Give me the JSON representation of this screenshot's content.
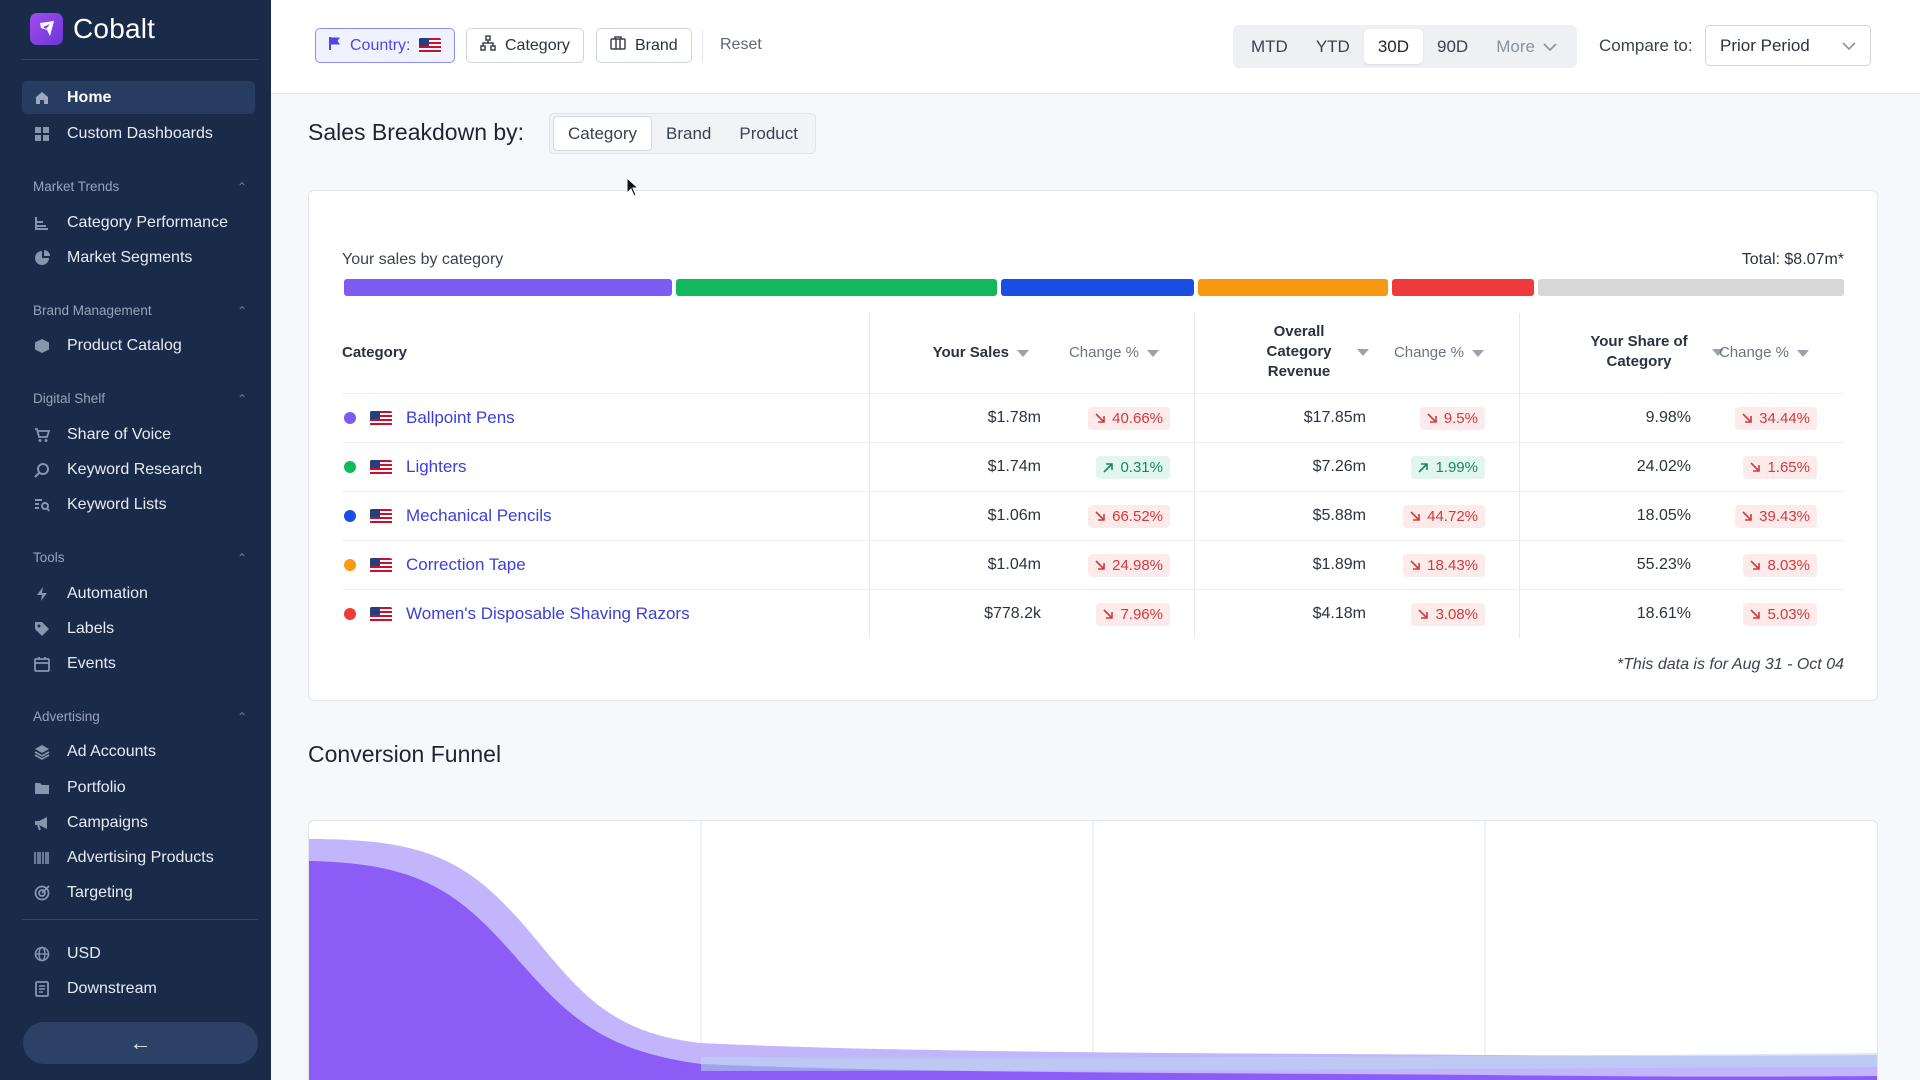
{
  "sidebar": {
    "brand": "Cobalt",
    "top_items": [
      {
        "label": "Home",
        "icon": "home-icon",
        "active": true
      },
      {
        "label": "Custom Dashboards",
        "icon": "dashboard-icon"
      }
    ],
    "sections": [
      {
        "title": "Market Trends",
        "items": [
          {
            "label": "Category Performance",
            "icon": "category-tree-icon"
          },
          {
            "label": "Market Segments",
            "icon": "pie-chart-icon"
          }
        ]
      },
      {
        "title": "Brand Management",
        "items": [
          {
            "label": "Product Catalog",
            "icon": "box-icon"
          }
        ]
      },
      {
        "title": "Digital Shelf",
        "items": [
          {
            "label": "Share of Voice",
            "icon": "cart-icon"
          },
          {
            "label": "Keyword Research",
            "icon": "search-icon"
          },
          {
            "label": "Keyword Lists",
            "icon": "list-search-icon"
          }
        ]
      },
      {
        "title": "Tools",
        "items": [
          {
            "label": "Automation",
            "icon": "bolt-icon"
          },
          {
            "label": "Labels",
            "icon": "tag-icon"
          },
          {
            "label": "Events",
            "icon": "calendar-icon"
          }
        ]
      },
      {
        "title": "Advertising",
        "items": [
          {
            "label": "Ad Accounts",
            "icon": "layers-icon"
          },
          {
            "label": "Portfolio",
            "icon": "folder-icon"
          },
          {
            "label": "Campaigns",
            "icon": "megaphone-icon"
          },
          {
            "label": "Advertising Products",
            "icon": "barcode-icon"
          },
          {
            "label": "Targeting",
            "icon": "target-icon"
          }
        ]
      }
    ],
    "bottom_items": [
      {
        "label": "USD",
        "icon": "globe-icon"
      },
      {
        "label": "Downstream",
        "icon": "document-icon"
      }
    ],
    "collapse_glyph": "←"
  },
  "filters": {
    "country_label": "Country:",
    "category_label": "Category",
    "brand_label": "Brand",
    "reset_label": "Reset"
  },
  "periods": {
    "options": [
      "MTD",
      "YTD",
      "30D",
      "90D"
    ],
    "active": "30D",
    "more_label": "More",
    "compare_label": "Compare to:",
    "compare_value": "Prior Period"
  },
  "breakdown": {
    "title": "Sales Breakdown by:",
    "tabs": [
      "Category",
      "Brand",
      "Product"
    ],
    "active_tab": "Category"
  },
  "sales_card": {
    "subtitle": "Your sales by category",
    "total": "Total: $8.07m*",
    "colors": {
      "purple": "#7c5cf2",
      "green": "#12b859",
      "blue": "#1a4fe6",
      "orange": "#f79a12",
      "red": "#ee3a3a",
      "gray": "#d7d7d7"
    },
    "headers": {
      "category": "Category",
      "your_sales": "Your Sales",
      "change1": "Change %",
      "overall": "Overall Category Revenue",
      "change2": "Change %",
      "share": "Your Share of Category",
      "change3": "Change %"
    },
    "rows": [
      {
        "color": "#7c5cf2",
        "name": "Ballpoint Pens",
        "sales": "$1.78m",
        "ch1": "40.66%",
        "ch1_dir": "down",
        "overall": "$17.85m",
        "ch2": "9.5%",
        "ch2_dir": "down",
        "share": "9.98%",
        "ch3": "34.44%",
        "ch3_dir": "down"
      },
      {
        "color": "#12b859",
        "name": "Lighters",
        "sales": "$1.74m",
        "ch1": "0.31%",
        "ch1_dir": "up",
        "overall": "$7.26m",
        "ch2": "1.99%",
        "ch2_dir": "up",
        "share": "24.02%",
        "ch3": "1.65%",
        "ch3_dir": "down"
      },
      {
        "color": "#1a4fe6",
        "name": "Mechanical Pencils",
        "sales": "$1.06m",
        "ch1": "66.52%",
        "ch1_dir": "down",
        "overall": "$5.88m",
        "ch2": "44.72%",
        "ch2_dir": "down",
        "share": "18.05%",
        "ch3": "39.43%",
        "ch3_dir": "down"
      },
      {
        "color": "#f79a12",
        "name": "Correction Tape",
        "sales": "$1.04m",
        "ch1": "24.98%",
        "ch1_dir": "down",
        "overall": "$1.89m",
        "ch2": "18.43%",
        "ch2_dir": "down",
        "share": "55.23%",
        "ch3": "8.03%",
        "ch3_dir": "down"
      },
      {
        "color": "#ee3a3a",
        "name": "Women's Disposable Shaving Razors",
        "sales": "$778.2k",
        "ch1": "7.96%",
        "ch1_dir": "down",
        "overall": "$4.18m",
        "ch2": "3.08%",
        "ch2_dir": "down",
        "share": "18.61%",
        "ch3": "5.03%",
        "ch3_dir": "down"
      }
    ],
    "footnote": "*This data is for Aug 31 - Oct 04"
  },
  "funnel": {
    "title": "Conversion Funnel"
  }
}
